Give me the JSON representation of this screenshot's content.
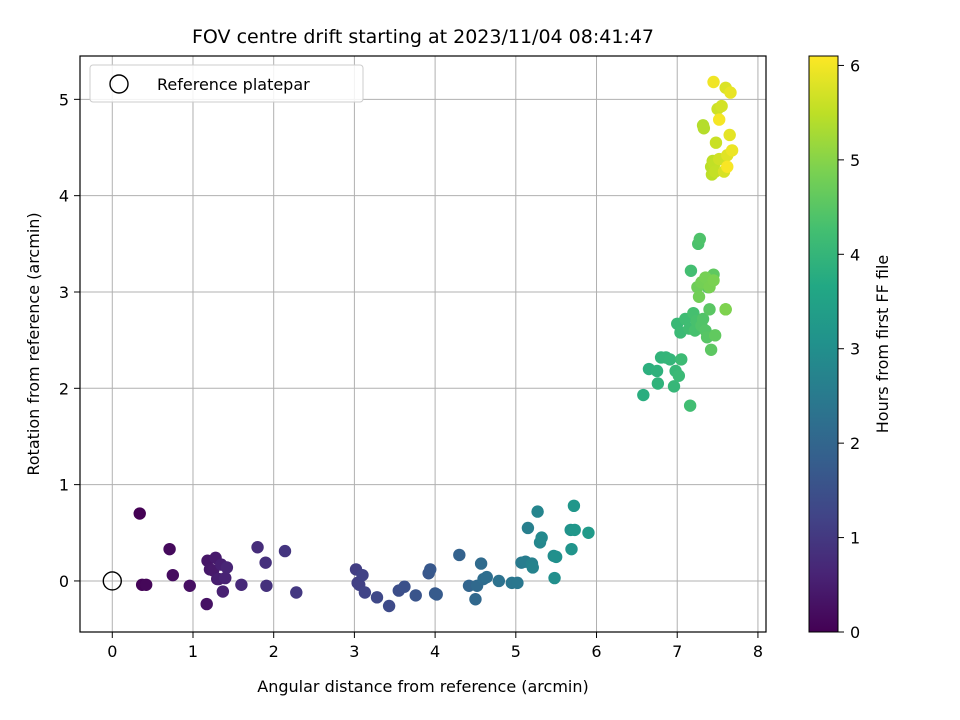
{
  "chart_data": {
    "type": "scatter",
    "title": "FOV centre drift starting at 2023/11/04 08:41:47",
    "xlabel": "Angular distance from reference (arcmin)",
    "ylabel": "Rotation from reference (arcmin)",
    "xlim": [
      -0.4,
      8.1
    ],
    "ylim": [
      -0.53,
      5.45
    ],
    "x_ticks": [
      0,
      1,
      2,
      3,
      4,
      5,
      6,
      7,
      8
    ],
    "y_ticks": [
      0,
      1,
      2,
      3,
      4,
      5
    ],
    "grid": true,
    "legend": {
      "placement": "top-left",
      "entries": [
        "Reference platepar"
      ]
    },
    "reference_point": {
      "name": "Reference platepar",
      "x": 0,
      "y": 0
    },
    "colorbar": {
      "label": "Hours from first FF file",
      "range": [
        0,
        6.1
      ],
      "ticks": [
        0,
        1,
        2,
        3,
        4,
        5,
        6
      ],
      "colormap": "viridis"
    },
    "series": [
      {
        "x": [
          0.34,
          0.37,
          0.42,
          0.71,
          0.75,
          0.96,
          1.17,
          1.18,
          1.21,
          1.25,
          1.28,
          1.3,
          1.32,
          1.35,
          1.37,
          1.4,
          1.42,
          1.6,
          1.8,
          1.9,
          1.91,
          2.14,
          2.28,
          3.02,
          3.04,
          3.06,
          3.1,
          3.13,
          3.28,
          3.43,
          3.55,
          3.62,
          3.76,
          3.92,
          3.94,
          4.0,
          4.02,
          4.3,
          4.42,
          4.5,
          4.52,
          4.57,
          4.6,
          4.64,
          4.79,
          4.95,
          5.02,
          5.07,
          5.12,
          5.15,
          5.2,
          5.21,
          5.27,
          5.3,
          5.32,
          5.47,
          5.48,
          5.5,
          5.68,
          5.69,
          5.72,
          5.73,
          5.9,
          6.58,
          6.65,
          6.75,
          6.76,
          6.8,
          6.86,
          6.91,
          6.96,
          6.98,
          7.0,
          7.02,
          7.04,
          7.05,
          7.1,
          7.15,
          7.16,
          7.17,
          7.2,
          7.22,
          7.24,
          7.26,
          7.28,
          7.3,
          7.32,
          7.35,
          7.37,
          7.38,
          7.4,
          7.42,
          7.45,
          7.47,
          7.6,
          7.25,
          7.27,
          7.3,
          7.35,
          7.4,
          7.45,
          7.6,
          7.32,
          7.33,
          7.42,
          7.43,
          7.44,
          7.46,
          7.47,
          7.48,
          7.5,
          7.52,
          7.55,
          7.58,
          7.6,
          7.62,
          7.65,
          7.66,
          7.68,
          7.45,
          7.52,
          7.62
        ],
        "y": [
          0.7,
          -0.04,
          -0.04,
          0.33,
          0.06,
          -0.05,
          -0.24,
          0.21,
          0.12,
          0.11,
          0.24,
          0.02,
          0.02,
          0.17,
          -0.11,
          0.03,
          0.14,
          -0.04,
          0.35,
          0.19,
          -0.05,
          0.31,
          -0.12,
          0.12,
          -0.02,
          -0.04,
          0.06,
          -0.12,
          -0.17,
          -0.26,
          -0.1,
          -0.06,
          -0.15,
          0.08,
          0.12,
          -0.13,
          -0.14,
          0.27,
          -0.05,
          -0.19,
          -0.05,
          0.18,
          0.02,
          0.04,
          0.0,
          -0.02,
          -0.02,
          0.19,
          0.2,
          0.55,
          0.18,
          0.14,
          0.72,
          0.4,
          0.45,
          0.26,
          0.03,
          0.25,
          0.53,
          0.33,
          0.78,
          0.53,
          0.5,
          1.93,
          2.2,
          2.18,
          2.05,
          2.32,
          2.32,
          2.3,
          2.02,
          2.18,
          2.67,
          2.13,
          2.58,
          2.3,
          2.72,
          2.62,
          1.82,
          3.22,
          2.78,
          2.6,
          2.7,
          3.5,
          3.55,
          2.65,
          2.72,
          2.6,
          2.53,
          3.05,
          2.82,
          2.4,
          3.18,
          2.55,
          2.82,
          3.05,
          2.95,
          3.1,
          3.15,
          3.05,
          3.12,
          2.82,
          4.73,
          4.7,
          4.3,
          4.22,
          4.36,
          4.33,
          4.25,
          4.55,
          4.9,
          4.38,
          4.93,
          4.25,
          5.12,
          4.42,
          4.63,
          5.07,
          4.47,
          5.18,
          4.79,
          4.3
        ],
        "hours": [
          0.0,
          0.05,
          0.1,
          0.15,
          0.2,
          0.25,
          0.3,
          0.35,
          0.38,
          0.41,
          0.44,
          0.47,
          0.5,
          0.53,
          0.56,
          0.59,
          0.62,
          0.7,
          0.78,
          0.84,
          0.86,
          0.94,
          1.0,
          1.1,
          1.13,
          1.16,
          1.19,
          1.22,
          1.3,
          1.38,
          1.45,
          1.5,
          1.58,
          1.65,
          1.68,
          1.72,
          1.75,
          1.9,
          1.98,
          2.05,
          2.08,
          2.12,
          2.15,
          2.2,
          2.3,
          2.38,
          2.42,
          2.5,
          2.56,
          2.6,
          2.66,
          2.7,
          2.75,
          2.8,
          2.85,
          2.95,
          3.0,
          3.02,
          3.1,
          3.14,
          3.18,
          3.2,
          3.3,
          3.8,
          3.85,
          3.9,
          3.92,
          3.95,
          3.98,
          4.0,
          4.03,
          4.05,
          4.08,
          4.1,
          4.12,
          4.14,
          4.18,
          4.2,
          4.22,
          4.25,
          4.28,
          4.3,
          4.32,
          4.35,
          4.38,
          4.4,
          4.42,
          4.45,
          4.48,
          4.5,
          4.52,
          4.55,
          4.58,
          4.6,
          4.7,
          4.75,
          4.78,
          4.8,
          4.83,
          4.86,
          4.88,
          4.92,
          5.4,
          5.42,
          5.45,
          5.48,
          5.5,
          5.53,
          5.56,
          5.6,
          5.63,
          5.66,
          5.7,
          5.74,
          5.78,
          5.82,
          5.86,
          5.9,
          5.94,
          5.98,
          6.02,
          6.05
        ]
      }
    ]
  }
}
